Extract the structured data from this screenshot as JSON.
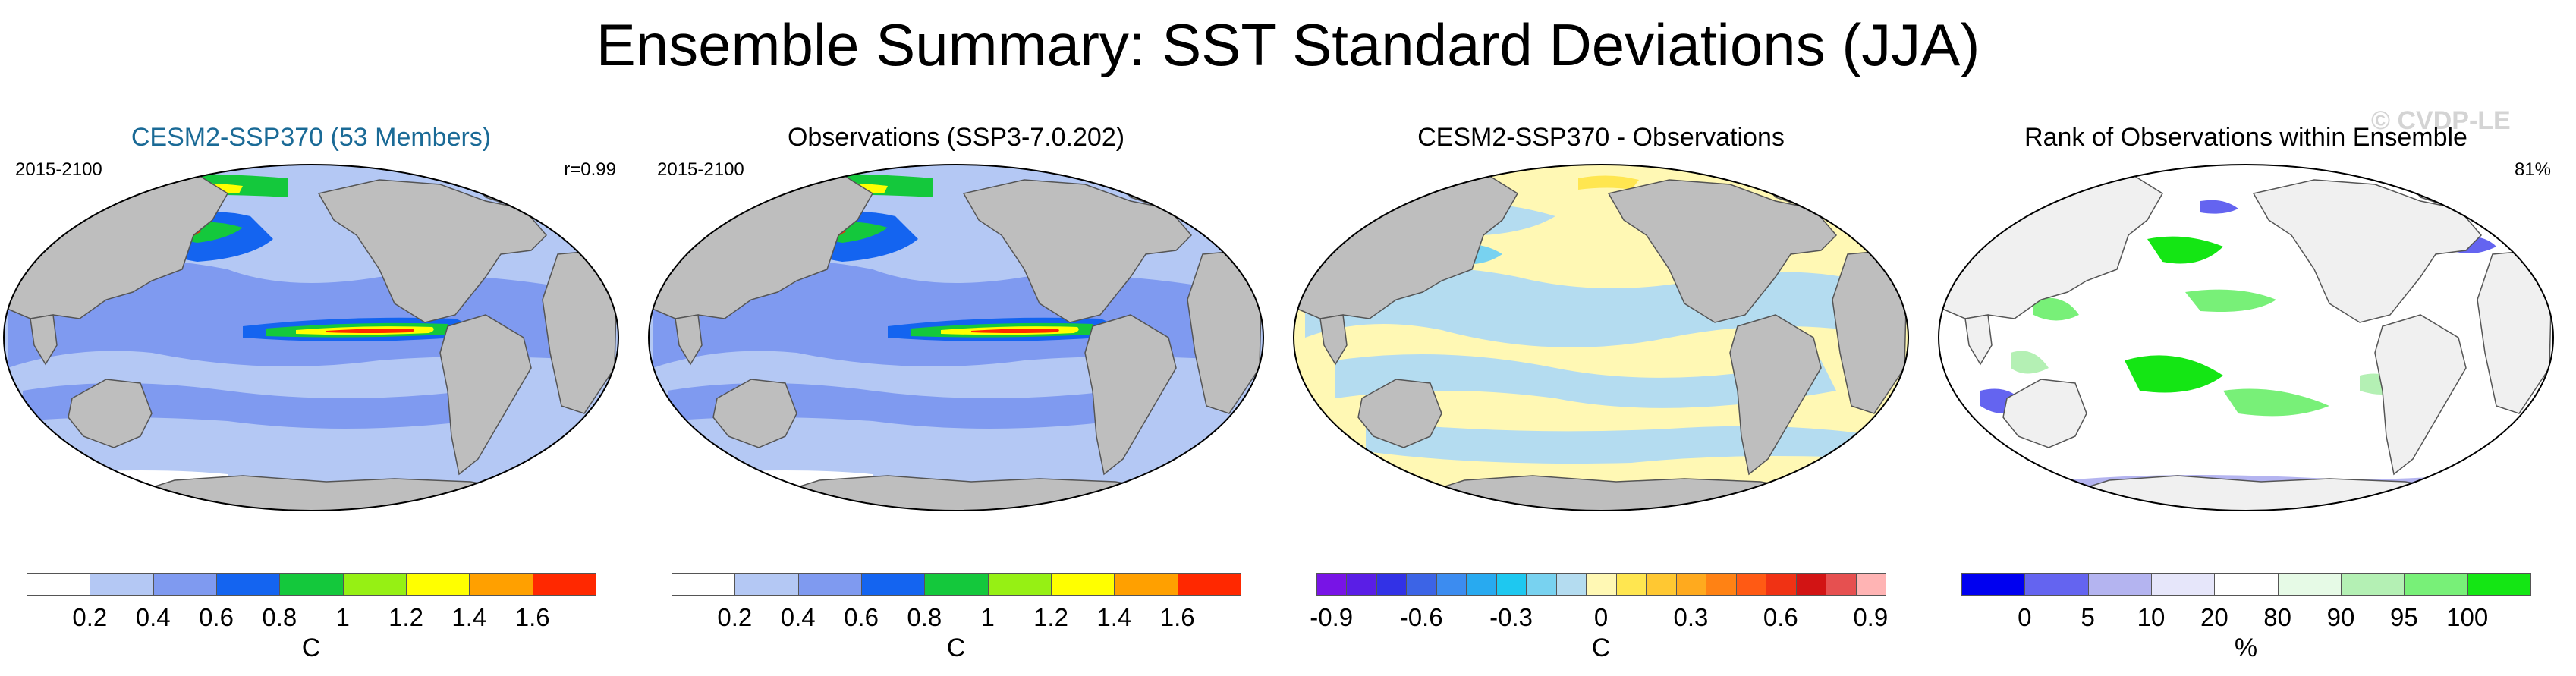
{
  "title": "Ensemble Summary: SST Standard Deviations (JJA)",
  "watermark": "© CVDP-LE",
  "panels": [
    {
      "title": "CESM2-SSP370 (53 Members)",
      "left_label": "2015-2100",
      "right_label": "r=0.99",
      "colorbar": {
        "colors": [
          "#ffffff",
          "#b4c8f4",
          "#7f9af0",
          "#1464f0",
          "#14c83c",
          "#96f014",
          "#ffff00",
          "#ffa000",
          "#ff2800"
        ],
        "ticks": [
          "0.2",
          "0.4",
          "0.6",
          "0.8",
          "1",
          "1.2",
          "1.4",
          "1.6"
        ],
        "unit": "C"
      }
    },
    {
      "title": "Observations (SSP3-7.0.202)",
      "left_label": "2015-2100",
      "right_label": "",
      "colorbar": {
        "colors": [
          "#ffffff",
          "#b4c8f4",
          "#7f9af0",
          "#1464f0",
          "#14c83c",
          "#96f014",
          "#ffff00",
          "#ffa000",
          "#ff2800"
        ],
        "ticks": [
          "0.2",
          "0.4",
          "0.6",
          "0.8",
          "1",
          "1.2",
          "1.4",
          "1.6"
        ],
        "unit": "C"
      }
    },
    {
      "title": "CESM2-SSP370 - Observations",
      "left_label": "",
      "right_label": "",
      "colorbar": {
        "colors": [
          "#7814e6",
          "#5a1ee6",
          "#3232e6",
          "#3c64e6",
          "#3c8cf0",
          "#28aaf0",
          "#1ec8f0",
          "#78d2f0",
          "#b4dcf0",
          "#fff8b4",
          "#ffe650",
          "#ffc832",
          "#ffaa1e",
          "#ff8214",
          "#ff5a14",
          "#f03214",
          "#d21414",
          "#e65050",
          "#ffb4b4"
        ],
        "ticks": [
          "-0.9",
          "-0.6",
          "-0.3",
          "0",
          "0.3",
          "0.6",
          "0.9"
        ],
        "unit": "C"
      }
    },
    {
      "title": "Rank of Observations within Ensemble",
      "left_label": "",
      "right_label": "81%",
      "colorbar": {
        "colors": [
          "#0000f0",
          "#6464f0",
          "#b4b4f0",
          "#e6e6fa",
          "#ffffff",
          "#e6fae6",
          "#b4f0b4",
          "#78f078",
          "#14e614"
        ],
        "ticks": [
          "0",
          "5",
          "10",
          "20",
          "80",
          "90",
          "95",
          "100"
        ],
        "unit": "%"
      }
    }
  ]
}
